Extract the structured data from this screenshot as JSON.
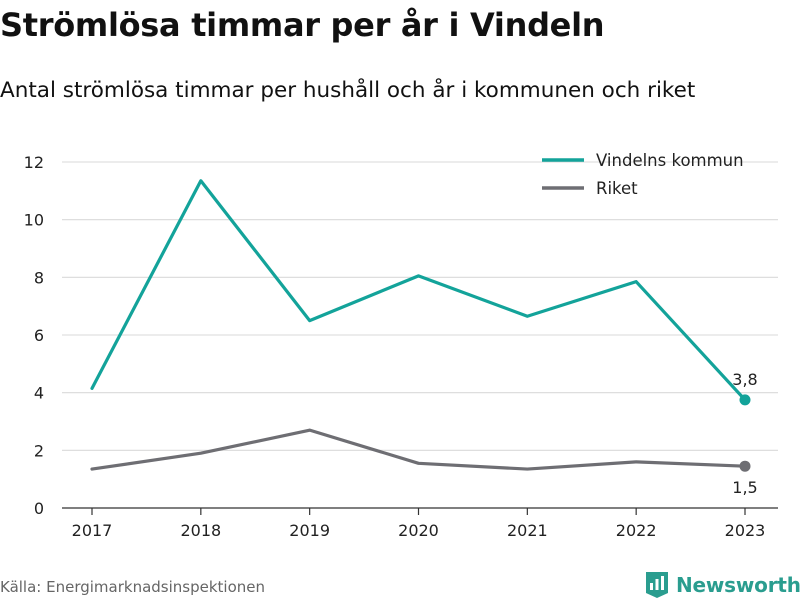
{
  "title": "Strömlösa timmar per år i Vindeln",
  "subtitle": "Antal strömlösa timmar per hushåll och år i kommunen och riket",
  "source": "Källa: Energimarknadsinspektionen",
  "brand": {
    "name": "Newsworthy",
    "logo_icon": "bar-chart-flag-icon",
    "color": "#2a9d8f"
  },
  "chart_data": {
    "type": "line",
    "x": [
      "2017",
      "2018",
      "2019",
      "2020",
      "2021",
      "2022",
      "2023"
    ],
    "ylim": [
      0,
      12
    ],
    "yticks": [
      0,
      2,
      4,
      6,
      8,
      10,
      12
    ],
    "grid": true,
    "legend_position": "top-right",
    "series": [
      {
        "name": "Vindelns kommun",
        "color": "#13a39a",
        "values": [
          4.15,
          11.35,
          6.5,
          8.05,
          6.65,
          7.85,
          3.75
        ],
        "end_label": "3,8"
      },
      {
        "name": "Riket",
        "color": "#6e6e73",
        "values": [
          1.35,
          1.9,
          2.7,
          1.55,
          1.35,
          1.6,
          1.45
        ],
        "end_label": "1,5"
      }
    ]
  }
}
